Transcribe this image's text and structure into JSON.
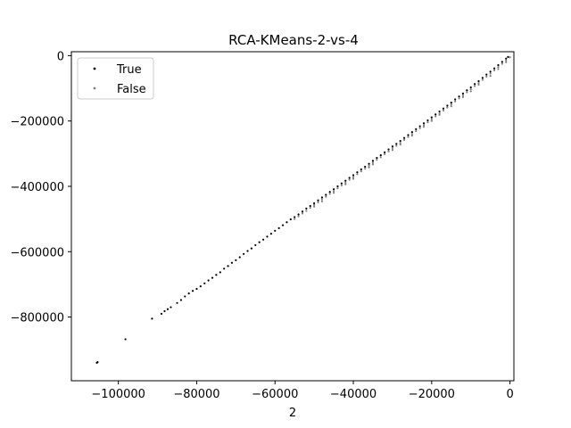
{
  "chart_data": {
    "type": "scatter",
    "title": "RCA-KMeans-2-vs-4",
    "xlabel": "2",
    "ylabel": "",
    "xlim": [
      -112000,
      1000
    ],
    "ylim": [
      -995000,
      12000
    ],
    "xticks": [
      -100000,
      -80000,
      -60000,
      -40000,
      -20000,
      0
    ],
    "xtick_labels": [
      "−100000",
      "−80000",
      "−60000",
      "−40000",
      "−20000",
      "0"
    ],
    "yticks": [
      0,
      -200000,
      -400000,
      -600000,
      -800000
    ],
    "ytick_labels": [
      "0",
      "−200000",
      "−400000",
      "−600000",
      "−800000"
    ],
    "grid": false,
    "legend_position": "top-left",
    "series": [
      {
        "name": "False",
        "color": "#808080",
        "points": [
          [
            -55000,
            -500000
          ],
          [
            -54000,
            -492000
          ],
          [
            -53000,
            -483000
          ],
          [
            -52000,
            -475000
          ],
          [
            -51000,
            -466000
          ],
          [
            -50000,
            -457000
          ],
          [
            -49000,
            -449000
          ],
          [
            -48000,
            -440000
          ],
          [
            -47000,
            -432000
          ],
          [
            -46000,
            -423000
          ],
          [
            -45000,
            -415000
          ],
          [
            -44000,
            -406000
          ],
          [
            -43000,
            -397000
          ],
          [
            -42000,
            -389000
          ],
          [
            -41000,
            -380000
          ],
          [
            -40000,
            -372000
          ],
          [
            -39000,
            -363000
          ],
          [
            -38000,
            -354000
          ],
          [
            -37000,
            -346000
          ],
          [
            -36000,
            -337000
          ],
          [
            -35000,
            -328000
          ],
          [
            -34000,
            -319000
          ],
          [
            -33000,
            -311000
          ],
          [
            -32000,
            -302000
          ],
          [
            -31000,
            -293000
          ],
          [
            -30000,
            -284000
          ],
          [
            -29000,
            -276000
          ],
          [
            -28000,
            -267000
          ],
          [
            -27000,
            -258000
          ],
          [
            -26000,
            -249000
          ],
          [
            -25000,
            -240000
          ],
          [
            -24000,
            -231000
          ],
          [
            -23000,
            -222000
          ],
          [
            -22000,
            -213000
          ],
          [
            -21000,
            -204000
          ],
          [
            -20000,
            -195000
          ],
          [
            -19000,
            -186000
          ],
          [
            -18000,
            -177000
          ],
          [
            -17000,
            -168000
          ],
          [
            -16000,
            -159000
          ],
          [
            -15000,
            -150000
          ],
          [
            -14000,
            -140000
          ],
          [
            -13000,
            -131000
          ],
          [
            -12000,
            -122000
          ],
          [
            -11000,
            -112000
          ],
          [
            -10000,
            -103000
          ],
          [
            -9000,
            -93000
          ],
          [
            -8000,
            -84000
          ],
          [
            -7000,
            -74000
          ],
          [
            -6000,
            -64000
          ],
          [
            -5000,
            -55000
          ],
          [
            -4000,
            -45000
          ],
          [
            -3000,
            -35000
          ],
          [
            -2000,
            -25000
          ],
          [
            -1000,
            -15000
          ],
          [
            0,
            -5000
          ],
          [
            -50000,
            -462000
          ],
          [
            -45000,
            -420000
          ],
          [
            -40000,
            -377000
          ],
          [
            -35000,
            -333000
          ],
          [
            -30000,
            -289000
          ],
          [
            -25000,
            -245000
          ],
          [
            -20000,
            -200000
          ],
          [
            -15000,
            -155000
          ],
          [
            -10000,
            -109000
          ],
          [
            -5000,
            -62000
          ],
          [
            -48000,
            -446000
          ],
          [
            -42000,
            -394000
          ],
          [
            -36000,
            -342000
          ],
          [
            -28000,
            -272000
          ],
          [
            -22000,
            -218000
          ],
          [
            -18000,
            -181000
          ],
          [
            -12000,
            -127000
          ],
          [
            -8000,
            -89000
          ],
          [
            -3000,
            -41000
          ],
          [
            -1000,
            -20000
          ]
        ]
      },
      {
        "name": "True",
        "color": "#000000",
        "points": [
          [
            -105500,
            -940000
          ],
          [
            -105300,
            -938000
          ],
          [
            -98200,
            -868000
          ],
          [
            -91400,
            -805000
          ],
          [
            -89000,
            -790000
          ],
          [
            -88200,
            -782000
          ],
          [
            -87400,
            -776000
          ],
          [
            -86600,
            -770000
          ],
          [
            -85000,
            -757000
          ],
          [
            -84000,
            -748000
          ],
          [
            -83000,
            -737000
          ],
          [
            -82000,
            -728000
          ],
          [
            -81000,
            -720000
          ],
          [
            -80000,
            -714000
          ],
          [
            -79000,
            -706000
          ],
          [
            -78000,
            -697000
          ],
          [
            -77000,
            -688000
          ],
          [
            -76000,
            -680000
          ],
          [
            -75000,
            -671000
          ],
          [
            -74000,
            -663000
          ],
          [
            -73000,
            -652000
          ],
          [
            -72000,
            -644000
          ],
          [
            -71000,
            -634000
          ],
          [
            -70000,
            -626000
          ],
          [
            -69000,
            -617000
          ],
          [
            -68000,
            -607000
          ],
          [
            -67000,
            -598000
          ],
          [
            -66000,
            -590000
          ],
          [
            -65000,
            -580000
          ],
          [
            -64000,
            -571000
          ],
          [
            -63000,
            -563000
          ],
          [
            -62000,
            -554000
          ],
          [
            -61000,
            -545000
          ],
          [
            -60000,
            -536000
          ],
          [
            -59000,
            -528000
          ],
          [
            -58000,
            -519000
          ],
          [
            -57000,
            -510000
          ],
          [
            -56000,
            -501000
          ],
          [
            -55000,
            -494000
          ],
          [
            -54000,
            -486000
          ],
          [
            -53000,
            -477000
          ],
          [
            -52000,
            -468000
          ],
          [
            -51000,
            -460000
          ],
          [
            -50000,
            -452000
          ],
          [
            -49000,
            -443000
          ],
          [
            -48000,
            -434000
          ],
          [
            -47000,
            -426000
          ],
          [
            -46000,
            -417000
          ],
          [
            -45000,
            -409000
          ],
          [
            -44000,
            -400000
          ],
          [
            -43000,
            -391000
          ],
          [
            -42000,
            -383000
          ],
          [
            -41000,
            -374000
          ],
          [
            -40000,
            -366000
          ],
          [
            -39000,
            -357000
          ],
          [
            -38000,
            -348000
          ],
          [
            -37000,
            -340000
          ],
          [
            -36000,
            -331000
          ],
          [
            -35000,
            -322000
          ],
          [
            -34000,
            -313000
          ],
          [
            -33000,
            -305000
          ],
          [
            -32000,
            -296000
          ],
          [
            -31000,
            -287000
          ],
          [
            -30000,
            -278000
          ],
          [
            -29000,
            -270000
          ],
          [
            -28000,
            -261000
          ],
          [
            -27000,
            -252000
          ],
          [
            -26000,
            -243000
          ],
          [
            -25000,
            -234000
          ],
          [
            -24000,
            -225000
          ],
          [
            -23000,
            -216000
          ],
          [
            -22000,
            -207000
          ],
          [
            -21000,
            -198000
          ],
          [
            -20000,
            -189000
          ],
          [
            -19000,
            -180000
          ],
          [
            -18000,
            -171000
          ],
          [
            -17000,
            -162000
          ],
          [
            -16000,
            -153000
          ],
          [
            -15000,
            -144000
          ],
          [
            -14000,
            -134000
          ],
          [
            -13000,
            -125000
          ],
          [
            -12000,
            -116000
          ],
          [
            -11000,
            -106000
          ],
          [
            -10000,
            -97000
          ],
          [
            -9000,
            -87000
          ],
          [
            -8000,
            -78000
          ],
          [
            -7000,
            -68000
          ],
          [
            -6000,
            -58000
          ],
          [
            -5000,
            -49000
          ],
          [
            -4000,
            -39000
          ],
          [
            -3000,
            -29000
          ],
          [
            -2000,
            -19000
          ],
          [
            -1000,
            -9000
          ],
          [
            -500,
            -4000
          ]
        ]
      }
    ]
  }
}
